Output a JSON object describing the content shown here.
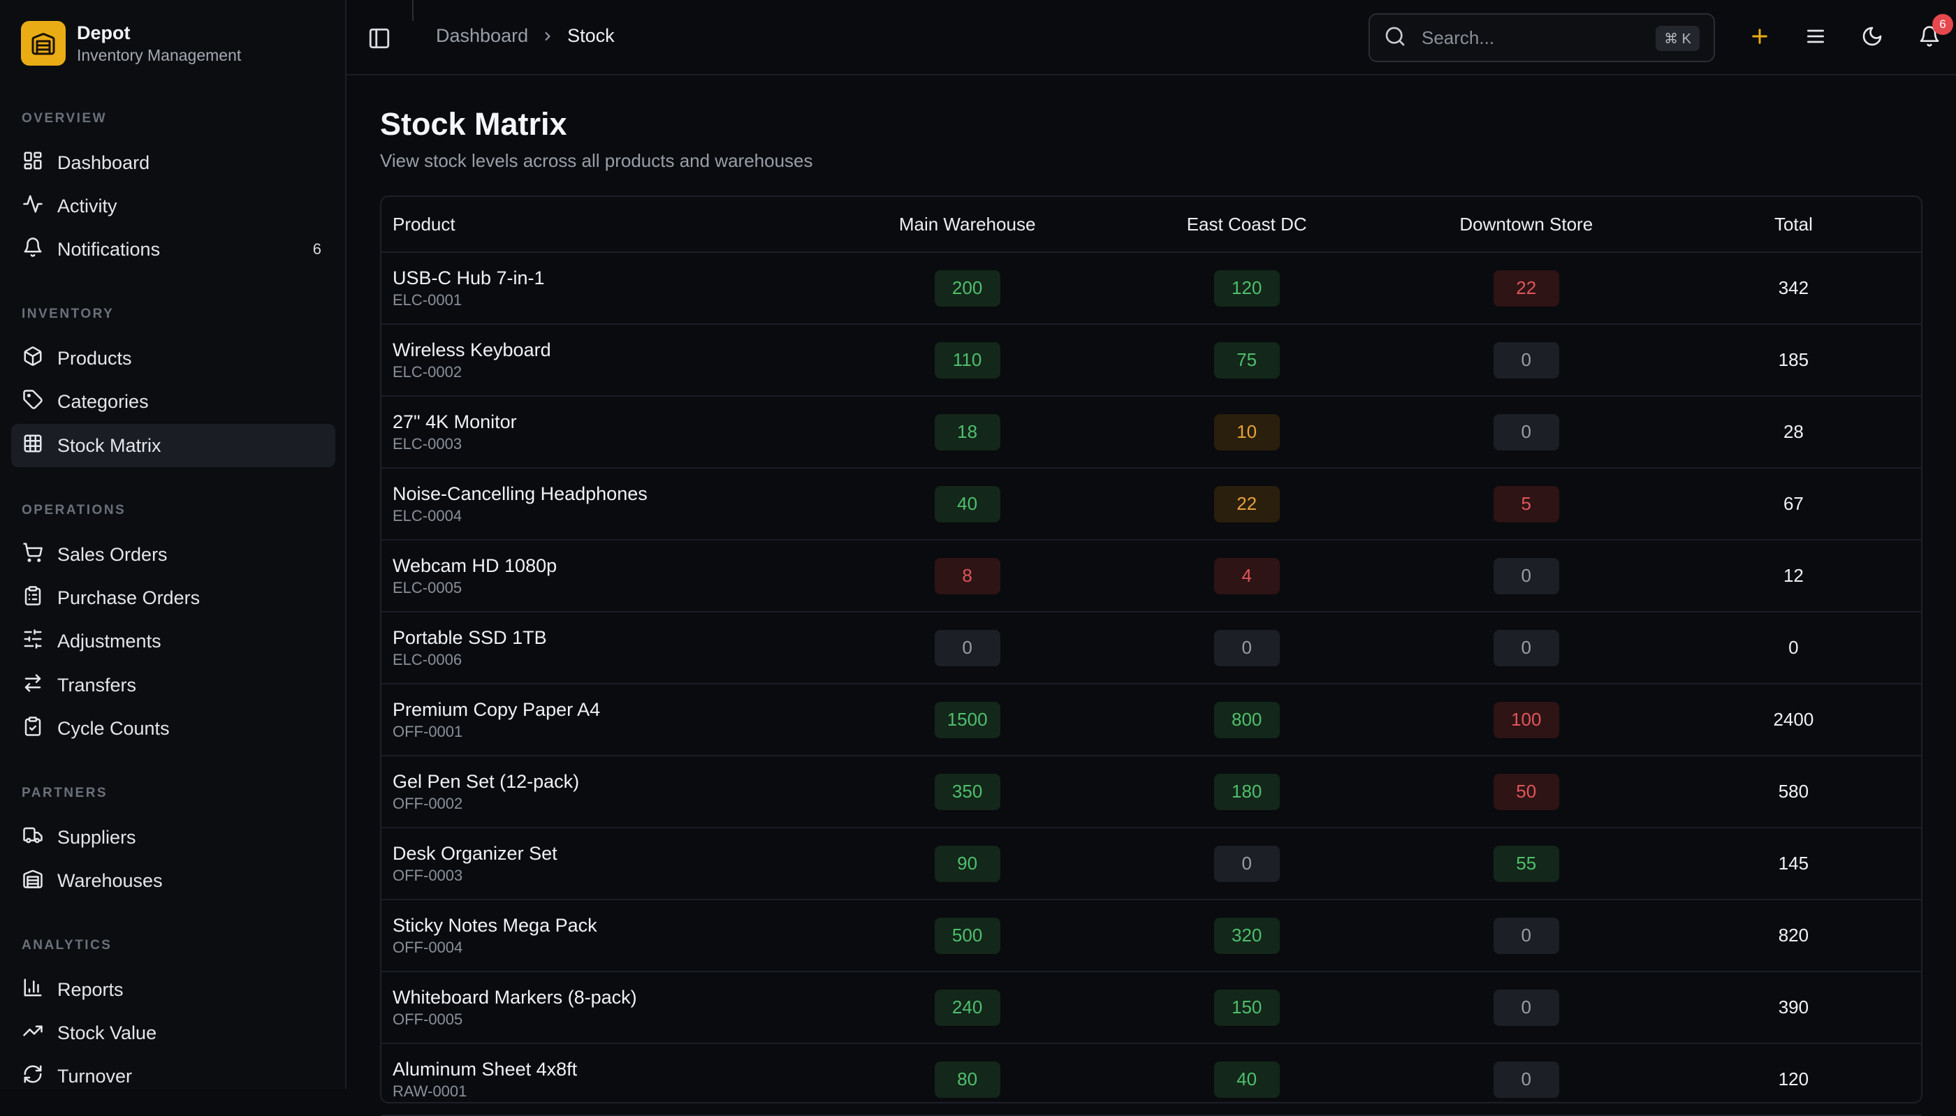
{
  "brand": {
    "name": "Depot",
    "subtitle": "Inventory Management"
  },
  "sidebar": {
    "sections": [
      {
        "label": "OVERVIEW",
        "items": [
          {
            "label": "Dashboard",
            "icon": "dashboard-icon"
          },
          {
            "label": "Activity",
            "icon": "activity-icon"
          },
          {
            "label": "Notifications",
            "icon": "bell-icon",
            "count": "6"
          }
        ]
      },
      {
        "label": "INVENTORY",
        "items": [
          {
            "label": "Products",
            "icon": "box-icon"
          },
          {
            "label": "Categories",
            "icon": "tag-icon"
          },
          {
            "label": "Stock Matrix",
            "icon": "grid-icon",
            "active": true
          }
        ]
      },
      {
        "label": "OPERATIONS",
        "items": [
          {
            "label": "Sales Orders",
            "icon": "cart-icon"
          },
          {
            "label": "Purchase Orders",
            "icon": "clipboard-icon"
          },
          {
            "label": "Adjustments",
            "icon": "sliders-icon"
          },
          {
            "label": "Transfers",
            "icon": "transfer-icon"
          },
          {
            "label": "Cycle Counts",
            "icon": "clipboard-check-icon"
          }
        ]
      },
      {
        "label": "PARTNERS",
        "items": [
          {
            "label": "Suppliers",
            "icon": "truck-icon"
          },
          {
            "label": "Warehouses",
            "icon": "warehouse-icon"
          }
        ]
      },
      {
        "label": "ANALYTICS",
        "items": [
          {
            "label": "Reports",
            "icon": "bar-chart-icon"
          },
          {
            "label": "Stock Value",
            "icon": "trending-up-icon"
          },
          {
            "label": "Turnover",
            "icon": "refresh-icon"
          }
        ]
      }
    ]
  },
  "header": {
    "breadcrumbs": [
      "Dashboard",
      "Stock"
    ],
    "search": {
      "placeholder": "Search...",
      "shortcut": "⌘ K"
    },
    "notification_count": "6",
    "accent_color": "#e9ac15"
  },
  "page": {
    "title": "Stock Matrix",
    "subtitle": "View stock levels across all products and warehouses"
  },
  "table": {
    "columns": [
      "Product",
      "Main Warehouse",
      "East Coast DC",
      "Downtown Store",
      "Total"
    ],
    "rows": [
      {
        "name": "USB-C Hub 7-in-1",
        "sku": "ELC-0001",
        "main": "200",
        "east": "120",
        "down": "22",
        "total": "342",
        "levels": [
          "green",
          "green",
          "red"
        ]
      },
      {
        "name": "Wireless Keyboard",
        "sku": "ELC-0002",
        "main": "110",
        "east": "75",
        "down": "0",
        "total": "185",
        "levels": [
          "green",
          "green",
          "zero"
        ]
      },
      {
        "name": "27\" 4K Monitor",
        "sku": "ELC-0003",
        "main": "18",
        "east": "10",
        "down": "0",
        "total": "28",
        "levels": [
          "green",
          "orange",
          "zero"
        ]
      },
      {
        "name": "Noise-Cancelling Headphones",
        "sku": "ELC-0004",
        "main": "40",
        "east": "22",
        "down": "5",
        "total": "67",
        "levels": [
          "green",
          "orange",
          "red"
        ]
      },
      {
        "name": "Webcam HD 1080p",
        "sku": "ELC-0005",
        "main": "8",
        "east": "4",
        "down": "0",
        "total": "12",
        "levels": [
          "red",
          "red",
          "zero"
        ]
      },
      {
        "name": "Portable SSD 1TB",
        "sku": "ELC-0006",
        "main": "0",
        "east": "0",
        "down": "0",
        "total": "0",
        "levels": [
          "zero",
          "zero",
          "zero"
        ]
      },
      {
        "name": "Premium Copy Paper A4",
        "sku": "OFF-0001",
        "main": "1500",
        "east": "800",
        "down": "100",
        "total": "2400",
        "levels": [
          "green",
          "green",
          "red"
        ]
      },
      {
        "name": "Gel Pen Set (12-pack)",
        "sku": "OFF-0002",
        "main": "350",
        "east": "180",
        "down": "50",
        "total": "580",
        "levels": [
          "green",
          "green",
          "red"
        ]
      },
      {
        "name": "Desk Organizer Set",
        "sku": "OFF-0003",
        "main": "90",
        "east": "0",
        "down": "55",
        "total": "145",
        "levels": [
          "green",
          "zero",
          "green"
        ]
      },
      {
        "name": "Sticky Notes Mega Pack",
        "sku": "OFF-0004",
        "main": "500",
        "east": "320",
        "down": "0",
        "total": "820",
        "levels": [
          "green",
          "green",
          "zero"
        ]
      },
      {
        "name": "Whiteboard Markers (8-pack)",
        "sku": "OFF-0005",
        "main": "240",
        "east": "150",
        "down": "0",
        "total": "390",
        "levels": [
          "green",
          "green",
          "zero"
        ]
      },
      {
        "name": "Aluminum Sheet 4x8ft",
        "sku": "RAW-0001",
        "main": "80",
        "east": "40",
        "down": "0",
        "total": "120",
        "levels": [
          "green",
          "green",
          "zero"
        ]
      }
    ]
  }
}
